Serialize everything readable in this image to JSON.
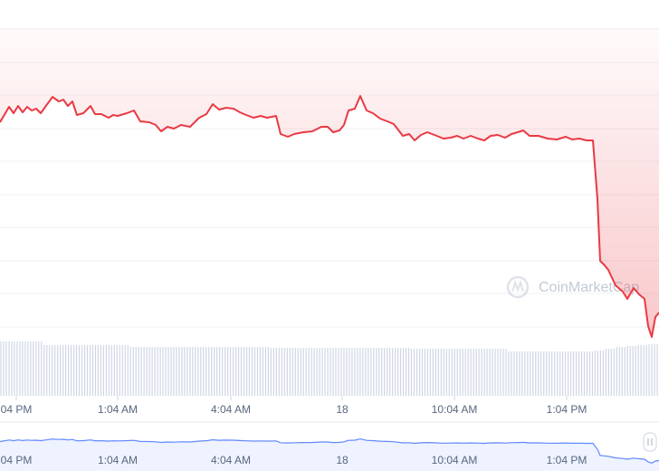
{
  "chart_data": {
    "type": "line",
    "watermark": "CoinMarketCap",
    "xlim": [
      0,
      728
    ],
    "xticks": [
      {
        "value": 18,
        "label": "04 PM"
      },
      {
        "value": 130,
        "label": "1:04 AM"
      },
      {
        "value": 255,
        "label": "4:04 AM"
      },
      {
        "value": 378,
        "label": "18"
      },
      {
        "value": 502,
        "label": "10:04 AM"
      },
      {
        "value": 626,
        "label": "1:04 PM"
      }
    ],
    "ylim": [
      0,
      350
    ],
    "color": "#ea3943",
    "x": [
      0,
      10,
      15,
      20,
      25,
      30,
      35,
      40,
      45,
      50,
      58,
      65,
      70,
      75,
      80,
      85,
      92,
      100,
      105,
      112,
      120,
      125,
      130,
      140,
      148,
      155,
      165,
      172,
      178,
      185,
      192,
      200,
      210,
      220,
      228,
      235,
      242,
      250,
      258,
      265,
      272,
      280,
      288,
      295,
      305,
      310,
      318,
      325,
      335,
      345,
      355,
      362,
      368,
      375,
      380,
      385,
      392,
      398,
      405,
      412,
      420,
      428,
      435,
      445,
      452,
      458,
      465,
      472,
      480,
      490,
      498,
      505,
      512,
      520,
      528,
      535,
      542,
      550,
      558,
      565,
      572,
      578,
      585,
      595,
      605,
      615,
      625,
      632,
      640,
      648,
      655,
      660,
      663,
      668,
      672,
      680,
      688,
      693,
      700,
      706,
      712,
      716,
      720,
      724,
      728
    ],
    "values": [
      245,
      262,
      255,
      263,
      256,
      262,
      258,
      260,
      255,
      262,
      273,
      268,
      270,
      263,
      268,
      253,
      255,
      263,
      254,
      254,
      250,
      253,
      252,
      255,
      258,
      246,
      245,
      242,
      235,
      240,
      238,
      242,
      240,
      250,
      254,
      265,
      259,
      261,
      260,
      256,
      253,
      250,
      252,
      250,
      252,
      232,
      229,
      232,
      234,
      235,
      240,
      240,
      234,
      236,
      242,
      258,
      260,
      274,
      258,
      255,
      249,
      246,
      243,
      230,
      232,
      225,
      231,
      234,
      231,
      227,
      228,
      230,
      227,
      230,
      227,
      225,
      230,
      231,
      228,
      232,
      234,
      236,
      230,
      230,
      227,
      226,
      229,
      226,
      227,
      225,
      225,
      160,
      92,
      87,
      82,
      65,
      58,
      50,
      62,
      55,
      50,
      20,
      8,
      30,
      35
    ],
    "volume_label": null,
    "volume": {
      "color": "#cfd6e4",
      "ylim": [
        0,
        60
      ],
      "values": [
        60,
        60,
        60,
        60,
        56,
        56,
        56,
        56,
        56,
        56,
        56,
        56,
        54,
        54,
        54,
        54,
        54,
        54,
        54,
        54,
        54,
        54,
        54,
        54,
        54,
        53,
        53,
        53,
        53,
        53,
        53,
        53,
        53,
        53,
        53,
        53,
        53,
        53,
        52,
        52,
        52,
        52,
        52,
        52,
        52,
        52,
        52,
        49,
        49,
        49,
        49,
        49,
        49,
        49,
        49,
        50,
        52,
        54,
        55,
        56,
        57
      ]
    },
    "navigator": {
      "color": "#6188ff"
    }
  }
}
